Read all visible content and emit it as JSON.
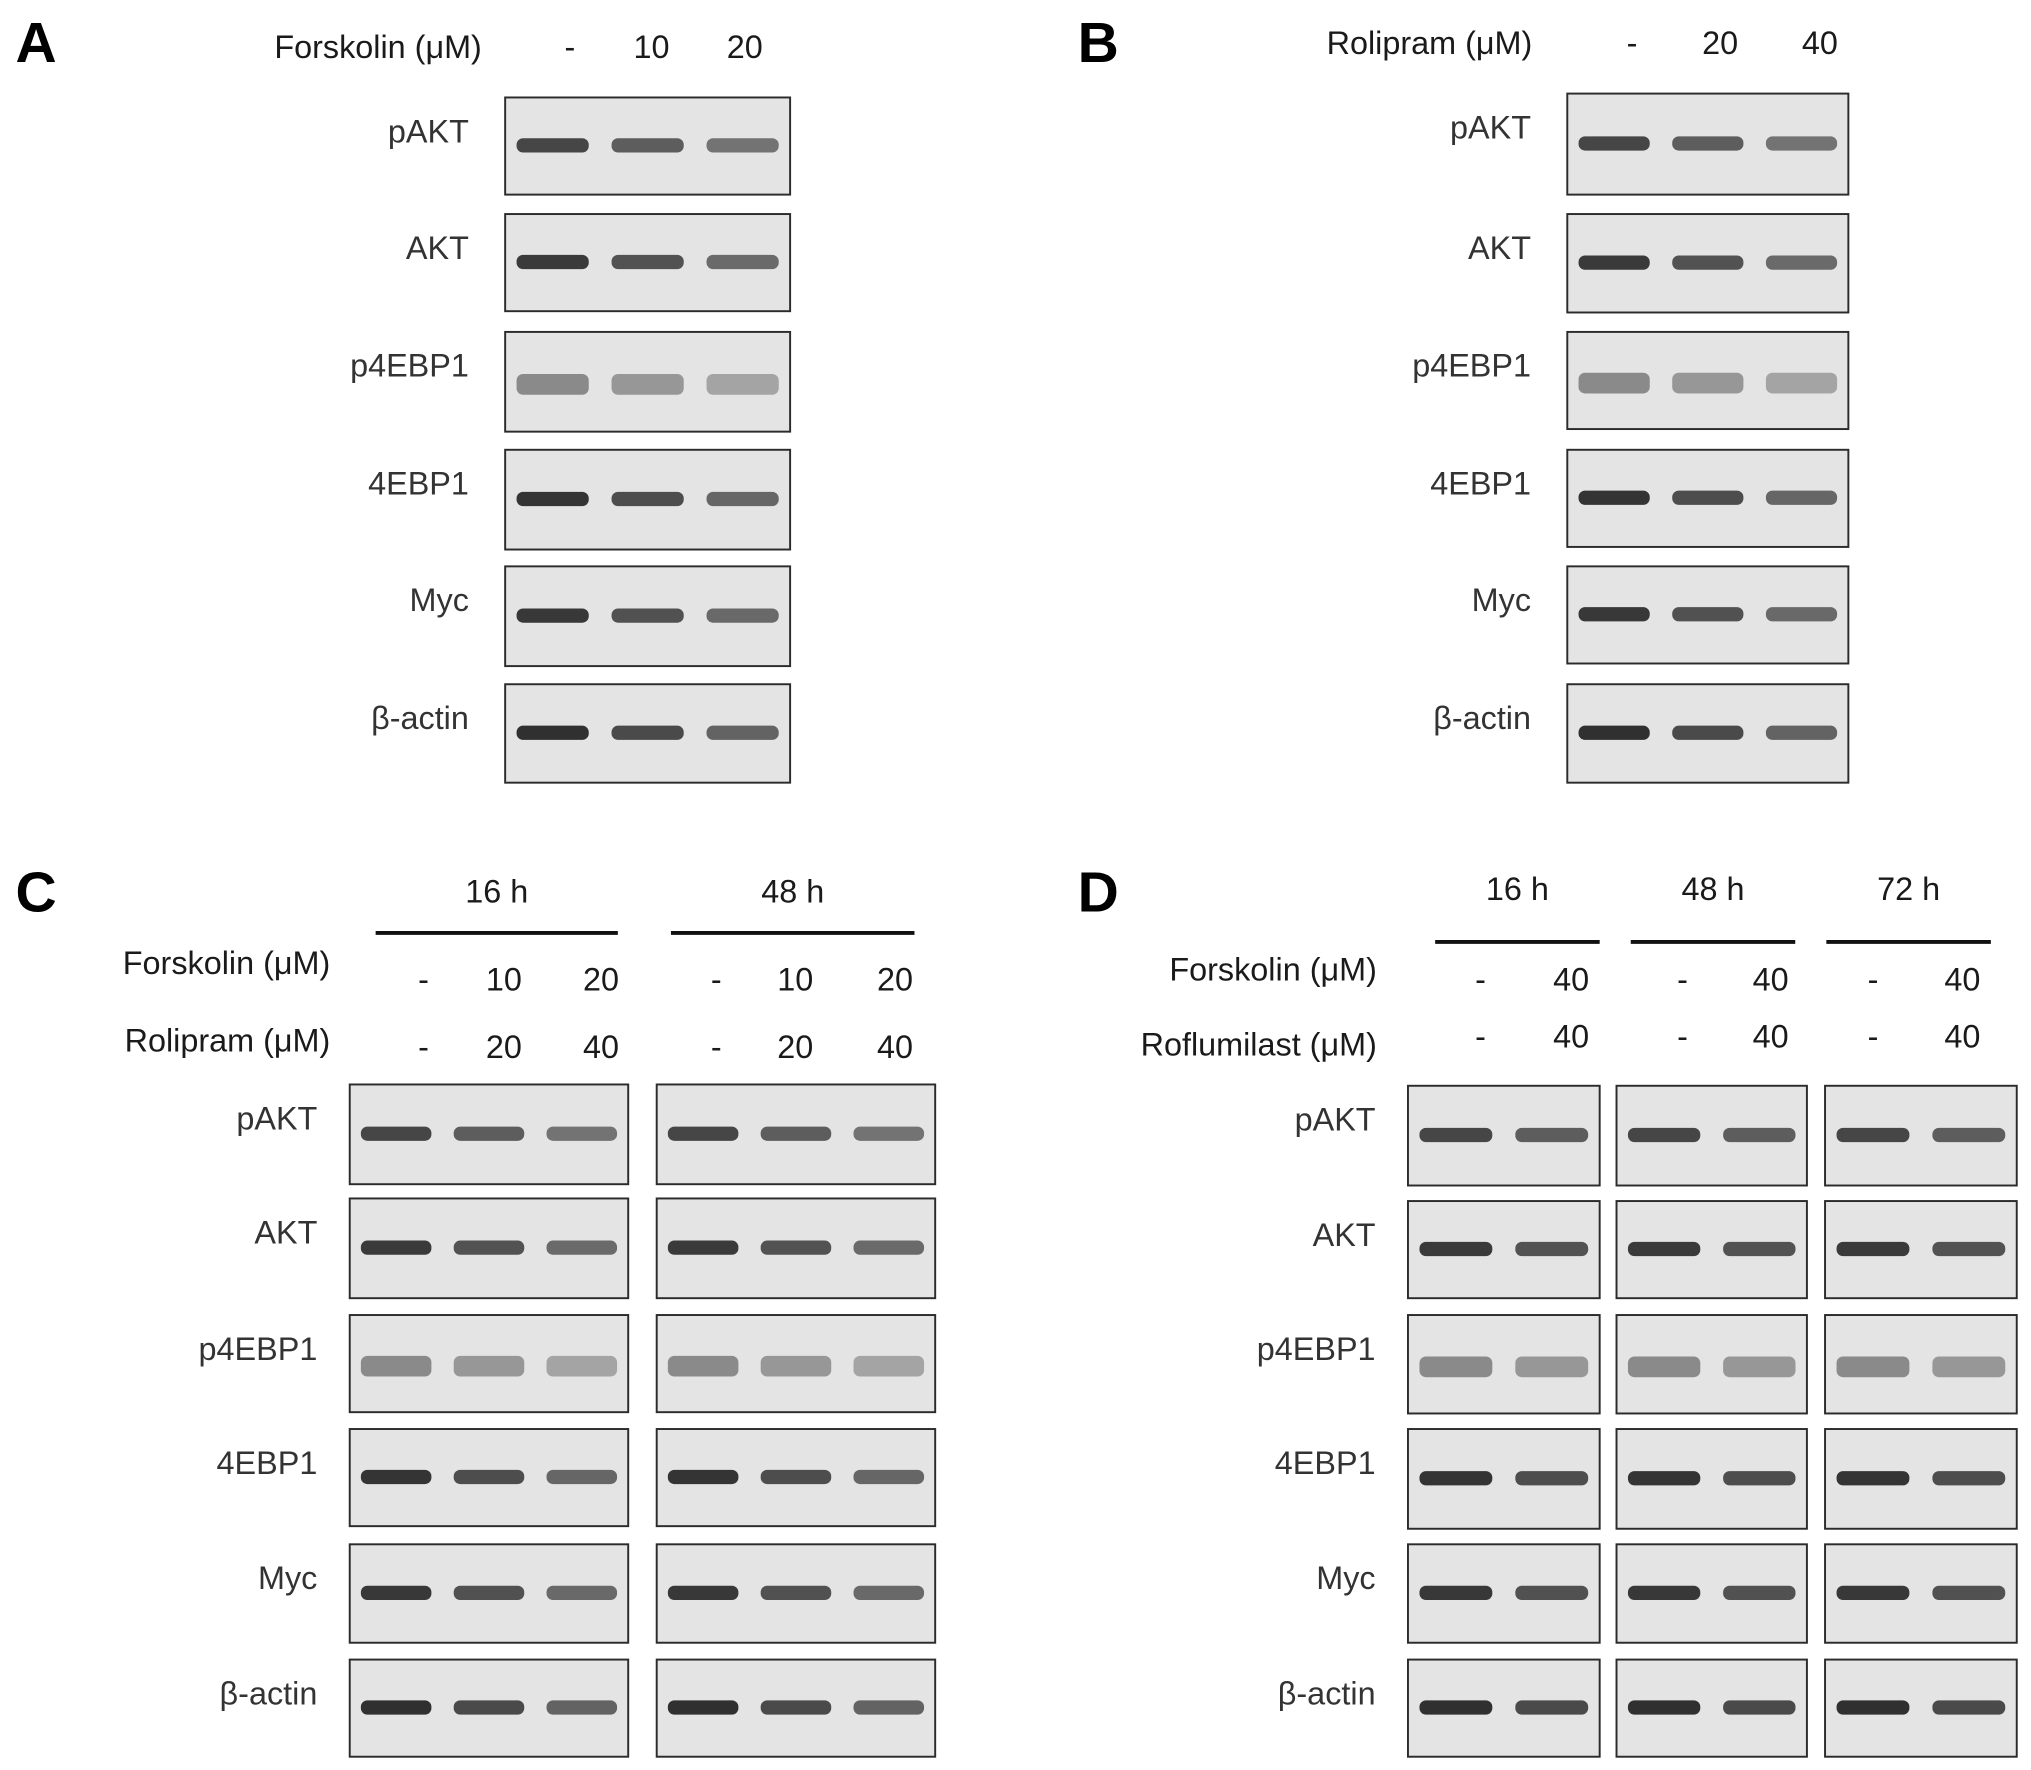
{
  "panels": [
    {
      "letter": "A",
      "treatments": [
        {
          "label": "Forskolin (μM)",
          "doses": [
            "-",
            "10",
            "20"
          ]
        }
      ],
      "blots": [
        "pAKT",
        "AKT",
        "p4EBP1",
        "4EBP1",
        "Myc",
        "β-actin"
      ]
    },
    {
      "letter": "B",
      "treatments": [
        {
          "label": "Rolipram (μM)",
          "doses": [
            "-",
            "20",
            "40"
          ]
        }
      ],
      "blots": [
        "pAKT",
        "AKT",
        "p4EBP1",
        "4EBP1",
        "Myc",
        "β-actin"
      ]
    },
    {
      "letter": "C",
      "groups": [
        "16 h",
        "48 h"
      ],
      "treatments": [
        {
          "label": "Forskolin (μM)",
          "doses": [
            "-",
            "10",
            "20",
            "-",
            "10",
            "20"
          ]
        },
        {
          "label": "Rolipram (μM)",
          "doses": [
            "-",
            "20",
            "40",
            "-",
            "20",
            "40"
          ]
        }
      ],
      "blots": [
        "pAKT",
        "AKT",
        "p4EBP1",
        "4EBP1",
        "Myc",
        "β-actin"
      ]
    },
    {
      "letter": "D",
      "groups": [
        "16 h",
        "48 h",
        "72 h"
      ],
      "treatments": [
        {
          "label": "Forskolin (μM)",
          "doses": [
            "-",
            "40",
            "-",
            "40",
            "-",
            "40"
          ]
        },
        {
          "label": "Roflumilast (μM)",
          "doses": [
            "-",
            "40",
            "-",
            "40",
            "-",
            "40"
          ]
        }
      ],
      "blots": [
        "pAKT",
        "AKT",
        "p4EBP1",
        "4EBP1",
        "Myc",
        "β-actin"
      ]
    }
  ]
}
